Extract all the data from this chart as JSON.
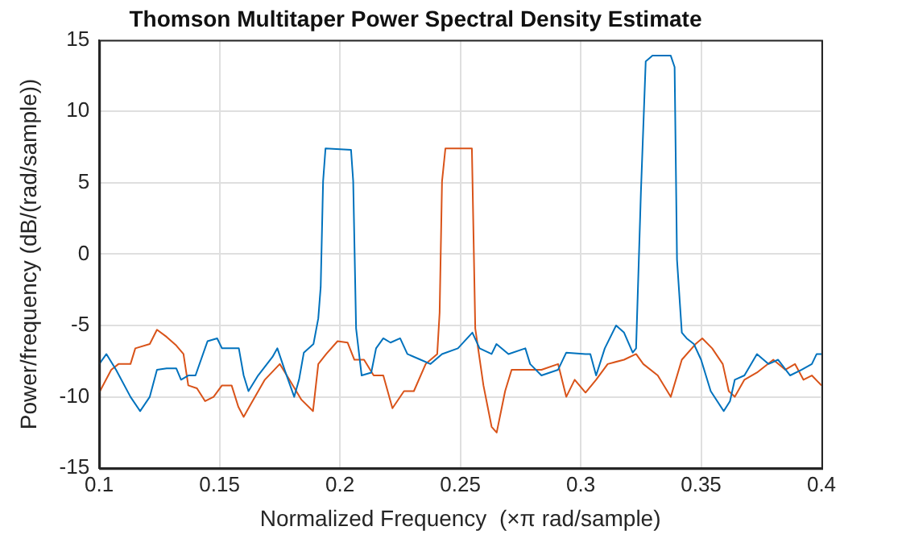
{
  "chart_data": {
    "type": "line",
    "title": "Thomson Multitaper Power Spectral Density Estimate",
    "xlabel": "Normalized Frequency  (×π rad/sample)",
    "ylabel": "Power/frequency (dB/(rad/sample))",
    "xlim": [
      0.1,
      0.4
    ],
    "xticks": [
      0.1,
      0.15,
      0.2,
      0.25,
      0.3,
      0.35,
      0.4
    ],
    "ylim": [
      -15,
      15
    ],
    "yticks": [
      -15,
      -10,
      -5,
      0,
      5,
      10,
      15
    ],
    "grid": true,
    "line_style": "solid",
    "marker": "none",
    "series": [
      {
        "color": "#0072bd",
        "x": [
          0.1,
          0.103,
          0.107,
          0.113,
          0.117,
          0.121,
          0.124,
          0.128,
          0.132,
          0.134,
          0.137,
          0.14,
          0.145,
          0.149,
          0.151,
          0.158,
          0.16,
          0.162,
          0.166,
          0.172,
          0.174,
          0.177,
          0.181,
          0.183,
          0.185,
          0.189,
          0.191,
          0.192,
          0.193,
          0.194,
          0.2046,
          0.2055,
          0.2067,
          0.209,
          0.213,
          0.215,
          0.218,
          0.221,
          0.225,
          0.228,
          0.2335,
          0.2376,
          0.2424,
          0.249,
          0.255,
          0.258,
          0.263,
          0.265,
          0.27,
          0.277,
          0.279,
          0.2837,
          0.2906,
          0.294,
          0.302,
          0.304,
          0.3064,
          0.31,
          0.3147,
          0.318,
          0.3216,
          0.323,
          0.325,
          0.327,
          0.3298,
          0.3374,
          0.339,
          0.34,
          0.342,
          0.344,
          0.347,
          0.35,
          0.354,
          0.3594,
          0.362,
          0.364,
          0.368,
          0.3732,
          0.378,
          0.382,
          0.387,
          0.3918,
          0.396,
          0.398,
          0.4
        ],
        "values": [
          -7.7,
          -7,
          -8.1,
          -10,
          -11,
          -10,
          -8.1,
          -8,
          -8,
          -8.8,
          -8.5,
          -8.5,
          -6.1,
          -5.9,
          -6.6,
          -6.6,
          -8.5,
          -9.6,
          -8.5,
          -7.2,
          -6.6,
          -8.1,
          -10,
          -8.8,
          -6.9,
          -6.3,
          -4.5,
          -2.3,
          5.1,
          7.4,
          7.3,
          5.1,
          -5.2,
          -8.5,
          -8.3,
          -6.6,
          -5.9,
          -6.2,
          -5.9,
          -7,
          -7.4,
          -7.7,
          -7,
          -6.6,
          -5.5,
          -6.6,
          -7,
          -6.3,
          -7,
          -6.6,
          -7.7,
          -8.5,
          -8.1,
          -6.9,
          -7,
          -7,
          -8.5,
          -6.6,
          -5,
          -5.5,
          -6.9,
          -6.6,
          4.3,
          13.5,
          13.9,
          13.9,
          13.1,
          -0.4,
          -5.5,
          -5.9,
          -6.3,
          -7.4,
          -9.6,
          -11,
          -10.3,
          -8.8,
          -8.5,
          -7,
          -7.7,
          -7.4,
          -8.5,
          -8.1,
          -7.7,
          -7,
          -7
        ]
      },
      {
        "color": "#d95319",
        "x": [
          0.1,
          0.105,
          0.108,
          0.113,
          0.115,
          0.121,
          0.124,
          0.128,
          0.132,
          0.135,
          0.137,
          0.1406,
          0.144,
          0.1475,
          0.151,
          0.155,
          0.1578,
          0.16,
          0.163,
          0.1688,
          0.175,
          0.179,
          0.184,
          0.1888,
          0.191,
          0.1943,
          0.199,
          0.2032,
          0.206,
          0.21,
          0.214,
          0.218,
          0.2218,
          0.2266,
          0.2307,
          0.2356,
          0.2404,
          0.2414,
          0.2424,
          0.2438,
          0.2548,
          0.2562,
          0.2596,
          0.263,
          0.2651,
          0.2686,
          0.2713,
          0.277,
          0.2837,
          0.2906,
          0.294,
          0.2975,
          0.302,
          0.3064,
          0.3112,
          0.318,
          0.323,
          0.326,
          0.332,
          0.3374,
          0.342,
          0.3477,
          0.3505,
          0.3546,
          0.359,
          0.3615,
          0.364,
          0.368,
          0.3732,
          0.38,
          0.385,
          0.389,
          0.3925,
          0.396,
          0.4
        ],
        "values": [
          -9.7,
          -8.1,
          -7.7,
          -7.7,
          -6.6,
          -6.3,
          -5.3,
          -5.8,
          -6.4,
          -7,
          -9.2,
          -9.4,
          -10.3,
          -10,
          -9.2,
          -9.2,
          -10.7,
          -11.4,
          -10.5,
          -8.8,
          -7.7,
          -8.8,
          -10.2,
          -11,
          -7.7,
          -7,
          -6.1,
          -6.2,
          -7.4,
          -7.4,
          -8.5,
          -8.5,
          -10.8,
          -9.6,
          -9.6,
          -7.7,
          -7,
          -4.1,
          5.1,
          7.4,
          7.4,
          -5.2,
          -9.2,
          -12.1,
          -12.5,
          -9.6,
          -8.1,
          -8.1,
          -8.1,
          -7.7,
          -10,
          -8.8,
          -9.7,
          -8.8,
          -7.7,
          -7.4,
          -7,
          -7.7,
          -8.5,
          -10,
          -7.4,
          -6.3,
          -5.9,
          -6.6,
          -7.7,
          -9.6,
          -10,
          -8.8,
          -8.3,
          -7.4,
          -8.1,
          -7.7,
          -8.8,
          -8.5,
          -9.2
        ]
      }
    ]
  }
}
